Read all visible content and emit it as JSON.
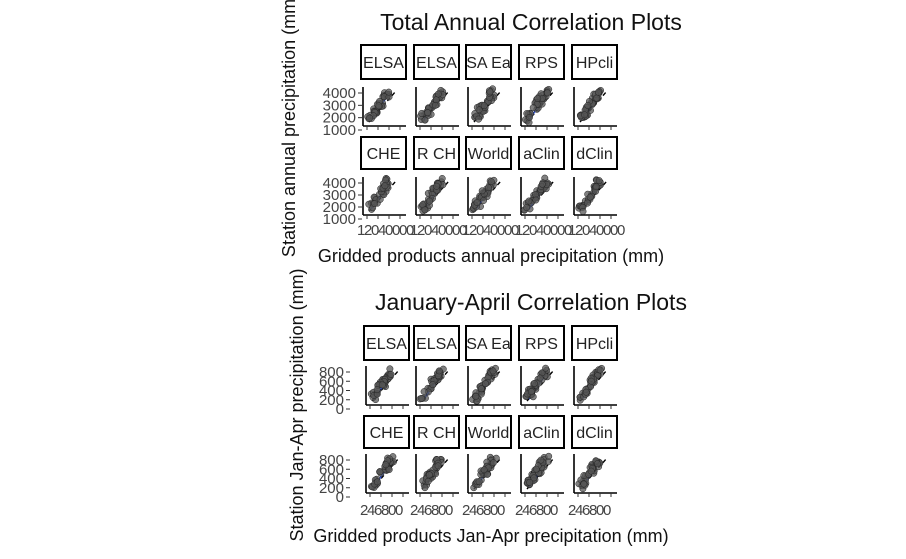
{
  "chart_data": [
    {
      "type": "scatter",
      "title": "Total Annual Correlation Plots",
      "xlabel": "Gridded products annual precipitation (mm)",
      "ylabel": "Station annual precipitation (mm)",
      "panels": [
        "ELSA",
        "ELSA",
        "SA Ea",
        "RPS",
        "HPcli",
        "CHE",
        "R CH",
        "World",
        "aClin",
        "dClin"
      ],
      "y_ticks": [
        "4000",
        "3000",
        "2000",
        "1000"
      ],
      "x_tick_text": [
        "1",
        "2",
        "0",
        "4",
        "0",
        "0",
        "0",
        "0"
      ],
      "xlim": [
        1000,
        4000
      ],
      "ylim": [
        1000,
        4000
      ],
      "reference_line": "1:1 dashed",
      "grid": false
    },
    {
      "type": "scatter",
      "title": "January-April Correlation Plots",
      "xlabel": "Gridded products Jan-Apr precipitation (mm)",
      "ylabel": "Station Jan-Apr precipitation (mm)",
      "panels": [
        "ELSA",
        "ELSA",
        "SA Ea",
        "RPS",
        "HPcli",
        "CHE",
        "R CH",
        "World",
        "aClin",
        "dClin"
      ],
      "y_ticks": [
        "800",
        "600",
        "400",
        "200",
        "0"
      ],
      "x_tick_text": [
        "2",
        "4",
        "6",
        "8",
        "0",
        "0"
      ],
      "xlim": [
        0,
        800
      ],
      "ylim": [
        0,
        800
      ],
      "reference_line": "1:1 dashed",
      "grid": false
    }
  ]
}
